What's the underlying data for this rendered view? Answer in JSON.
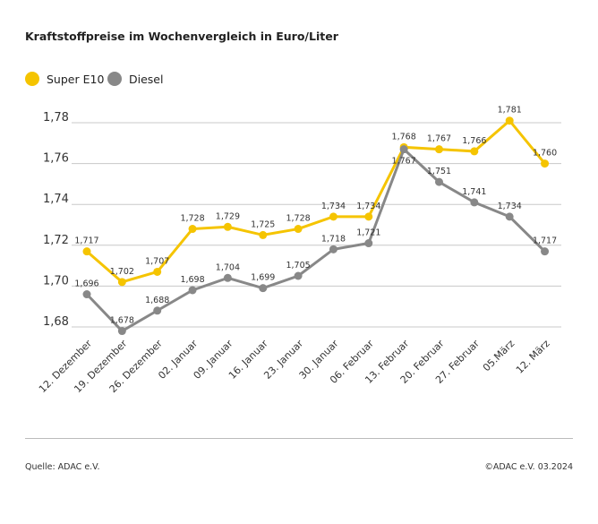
{
  "chart_data": {
    "type": "line",
    "title": "Kraftstoffpreise im Wochenvergleich in Euro/Liter",
    "categories": [
      "12. Dezember",
      "19. Dezember",
      "26. Dezember",
      "02. Januar",
      "09. Januar",
      "16. Januar",
      "23. Januar",
      "30. Januar",
      "06. Februar",
      "13. Februar",
      "20. Februar",
      "27. Februar",
      "05.März",
      "12. März"
    ],
    "series": [
      {
        "name": "Super E10",
        "color": "#f5c400",
        "values": [
          1.717,
          1.702,
          1.707,
          1.728,
          1.729,
          1.725,
          1.728,
          1.734,
          1.734,
          1.768,
          1.767,
          1.766,
          1.781,
          1.76
        ],
        "labels": [
          "1,717",
          "1,702",
          "1,707",
          "1,728",
          "1,729",
          "1,725",
          "1,728",
          "1,734",
          "1,734",
          "1,768",
          "1,767",
          "1,766",
          "1,781",
          "1,760"
        ]
      },
      {
        "name": "Diesel",
        "color": "#888888",
        "values": [
          1.696,
          1.678,
          1.688,
          1.698,
          1.704,
          1.699,
          1.705,
          1.718,
          1.721,
          1.767,
          1.751,
          1.741,
          1.734,
          1.717
        ],
        "labels": [
          "1,696",
          "1,678",
          "1,688",
          "1,698",
          "1,704",
          "1,699",
          "1,705",
          "1,718",
          "1,721",
          "1,767",
          "1,751",
          "1,741",
          "1,734",
          "1,717"
        ]
      }
    ],
    "yticks": [
      1.78,
      1.76,
      1.74,
      1.72,
      1.7,
      1.68
    ],
    "ytick_labels": [
      "1,78",
      "1,76",
      "1,74",
      "1,72",
      "1,70",
      "1,68"
    ],
    "ylim": [
      1.68,
      1.78
    ],
    "grid": true,
    "legend": "top-left"
  },
  "footer": {
    "source": "Quelle: ADAC e.V.",
    "copyright": "©ADAC e.V. 03.2024"
  }
}
